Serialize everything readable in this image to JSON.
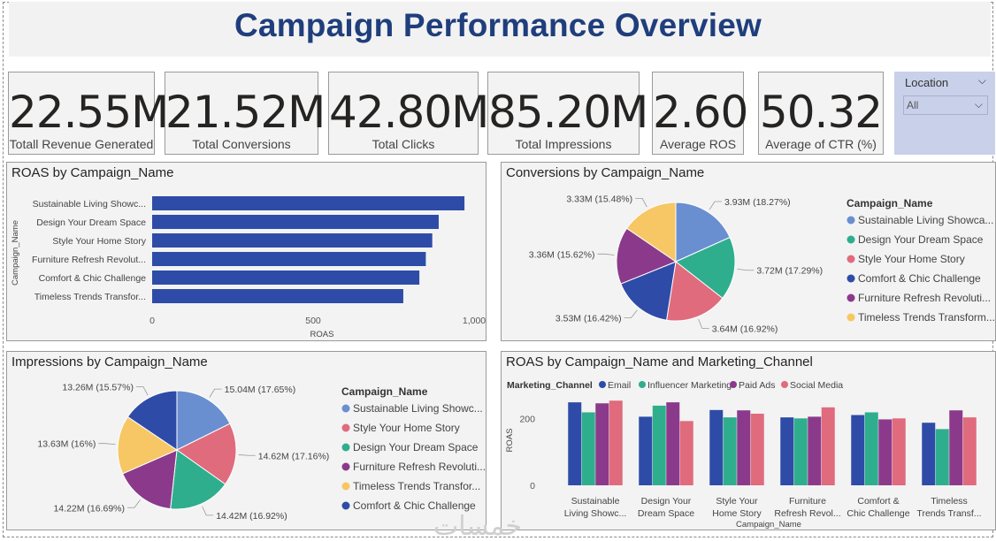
{
  "header": {
    "title": "Campaign Performance Overview"
  },
  "kpis": [
    {
      "value": "22.55M",
      "label": "Totall Revenue Generated"
    },
    {
      "value": "21.52M",
      "label": "Total Conversions"
    },
    {
      "value": "42.80M",
      "label": "Total Clicks"
    },
    {
      "value": "85.20M",
      "label": "Total Impressions"
    },
    {
      "value": "2.60",
      "label": "Average ROS"
    },
    {
      "value": "50.32",
      "label": "Average of CTR (%)"
    }
  ],
  "slicer": {
    "title": "Location",
    "selected": "All"
  },
  "watermark": "خمسات",
  "chart_data": [
    {
      "type": "bar",
      "orientation": "horizontal",
      "title": "ROAS by Campaign_Name",
      "xlabel": "ROAS",
      "ylabel": "Campaign_Name",
      "categories": [
        "Sustainable Living Showc...",
        "Design Your Dream Space",
        "Style Your Home Story",
        "Furniture Refresh Revolut...",
        "Comfort & Chic Challenge",
        "Timeless Trends Transfor..."
      ],
      "values": [
        970,
        890,
        870,
        850,
        830,
        780
      ],
      "xlim": [
        0,
        1000
      ],
      "xticks": [
        "0",
        "500",
        "1,000"
      ],
      "color": "#2e4ca7"
    },
    {
      "type": "pie",
      "title": "Conversions by Campaign_Name",
      "legend_title": "Campaign_Name",
      "legend_placement": "right",
      "slices": [
        {
          "name": "Sustainable Living Showca...",
          "value": 3.93,
          "label": "3.93M (18.27%)",
          "color": "#6a8fd0"
        },
        {
          "name": "Design Your Dream Space",
          "value": 3.72,
          "label": "3.72M (17.29%)",
          "color": "#2fae8e"
        },
        {
          "name": "Style Your Home Story",
          "value": 3.64,
          "label": "3.64M (16.92%)",
          "color": "#e06b7d"
        },
        {
          "name": "Comfort & Chic Challenge",
          "value": 3.53,
          "label": "3.53M (16.42%)",
          "color": "#2e4ca7"
        },
        {
          "name": "Furniture Refresh Revoluti...",
          "value": 3.36,
          "label": "3.36M (15.62%)",
          "color": "#8b3a8b"
        },
        {
          "name": "Timeless Trends Transform...",
          "value": 3.33,
          "label": "3.33M (15.48%)",
          "color": "#f6c764"
        }
      ]
    },
    {
      "type": "pie",
      "title": "Impressions by Campaign_Name",
      "legend_title": "Campaign_Name",
      "legend_placement": "right",
      "slices": [
        {
          "name": "Sustainable Living Showc...",
          "value": 15.04,
          "label": "15.04M (17.65%)",
          "color": "#6a8fd0"
        },
        {
          "name": "Style Your Home Story",
          "value": 14.62,
          "label": "14.62M (17.16%)",
          "color": "#e06b7d"
        },
        {
          "name": "Design Your Dream Space",
          "value": 14.42,
          "label": "14.42M (16.92%)",
          "color": "#2fae8e"
        },
        {
          "name": "Furniture Refresh Revoluti...",
          "value": 14.22,
          "label": "14.22M (16.69%)",
          "color": "#8b3a8b"
        },
        {
          "name": "Timeless Trends Transfor...",
          "value": 13.63,
          "label": "13.63M (16%)",
          "color": "#f6c764"
        },
        {
          "name": "Comfort & Chic Challenge",
          "value": 13.26,
          "label": "13.26M (15.57%)",
          "color": "#2e4ca7"
        }
      ]
    },
    {
      "type": "bar",
      "title": "ROAS by Campaign_Name and Marketing_Channel",
      "legend_title": "Marketing_Channel",
      "legend_placement": "top-left",
      "xlabel": "Campaign_Name",
      "ylabel": "ROAS",
      "ylim": [
        0,
        280
      ],
      "yticks": [
        "0",
        "200"
      ],
      "categories": [
        [
          "Sustainable",
          "Living Showc..."
        ],
        [
          "Design Your",
          "Dream Space"
        ],
        [
          "Style Your",
          "Home Story"
        ],
        [
          "Furniture",
          "Refresh Revol..."
        ],
        [
          "Comfort &",
          "Chic Challenge"
        ],
        [
          "Timeless",
          "Trends Transf..."
        ]
      ],
      "series": [
        {
          "name": "Email",
          "color": "#2e4ca7",
          "values": [
            248,
            205,
            225,
            203,
            210,
            187
          ]
        },
        {
          "name": "Influencer Marketing",
          "color": "#2fae8e",
          "values": [
            218,
            238,
            203,
            200,
            218,
            168
          ]
        },
        {
          "name": "Paid Ads",
          "color": "#8b3a8b",
          "values": [
            245,
            248,
            224,
            205,
            197,
            224
          ]
        },
        {
          "name": "Social Media",
          "color": "#e06b7d",
          "values": [
            253,
            192,
            214,
            233,
            200,
            203
          ]
        }
      ]
    }
  ]
}
